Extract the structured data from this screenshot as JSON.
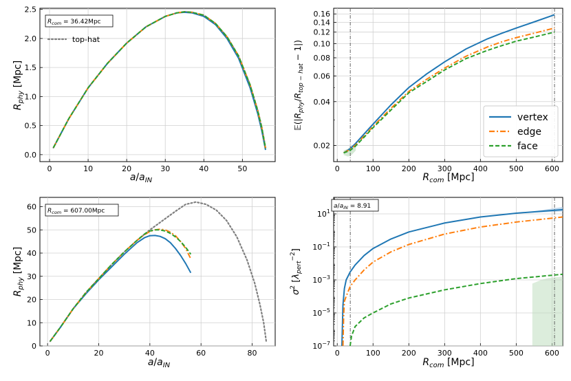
{
  "colors": {
    "vertex": "#1f77b4",
    "edge": "#ff7f0e",
    "face": "#2ca02c",
    "tophat": "#7f7f7f",
    "band_blue": "#a6c8e4",
    "band_green": "#b9dbb9",
    "vline": "#555555",
    "grid": "#d0d0d0"
  },
  "legend_labels": {
    "vertex": "vertex",
    "edge": "edge",
    "face": "face"
  },
  "chart_data": [
    {
      "id": "tl",
      "type": "line",
      "xlabel": "a/a_IN",
      "ylabel": "R_phy [Mpc]",
      "xlim": [
        -2.5,
        58.5
      ],
      "ylim": [
        -0.12,
        2.52
      ],
      "xticks": [
        0,
        10,
        20,
        30,
        40,
        50
      ],
      "yticks": [
        0.0,
        0.5,
        1.0,
        1.5,
        2.0,
        2.5
      ],
      "ytick_labels": [
        "0.0",
        "0.5",
        "1.0",
        "1.5",
        "2.0",
        "2.5"
      ],
      "annotation": "R_com = 36.42Mpc",
      "legend": [
        "top-hat"
      ],
      "legend_position": "upper-left",
      "series": [
        {
          "key": "tophat",
          "style": "dotted",
          "x": [
            1,
            5,
            10,
            15,
            20,
            25,
            30,
            33,
            35,
            37,
            40,
            43,
            46,
            49,
            52,
            54,
            55,
            56
          ],
          "y": [
            0.12,
            0.62,
            1.15,
            1.57,
            1.92,
            2.2,
            2.38,
            2.44,
            2.46,
            2.45,
            2.4,
            2.26,
            2.03,
            1.7,
            1.2,
            0.76,
            0.48,
            0.12
          ]
        },
        {
          "key": "vertex",
          "style": "solid",
          "x": [
            1,
            5,
            10,
            15,
            20,
            25,
            30,
            33,
            35,
            37,
            40,
            43,
            46,
            49,
            52,
            54,
            55,
            56
          ],
          "y": [
            0.12,
            0.62,
            1.15,
            1.57,
            1.92,
            2.2,
            2.38,
            2.44,
            2.45,
            2.44,
            2.38,
            2.24,
            2.0,
            1.66,
            1.15,
            0.7,
            0.42,
            0.08
          ]
        },
        {
          "key": "edge",
          "style": "dashdot",
          "x": [
            1,
            5,
            10,
            15,
            20,
            25,
            30,
            33,
            35,
            37,
            40,
            43,
            46,
            49,
            52,
            54,
            55,
            56
          ],
          "y": [
            0.12,
            0.62,
            1.15,
            1.57,
            1.92,
            2.2,
            2.38,
            2.44,
            2.46,
            2.45,
            2.4,
            2.26,
            2.03,
            1.7,
            1.2,
            0.75,
            0.47,
            0.11
          ]
        },
        {
          "key": "face",
          "style": "dashed",
          "x": [
            1,
            5,
            10,
            15,
            20,
            25,
            30,
            33,
            35,
            37,
            40,
            43,
            46,
            49,
            52,
            54,
            55,
            56
          ],
          "y": [
            0.12,
            0.62,
            1.15,
            1.57,
            1.92,
            2.2,
            2.38,
            2.44,
            2.46,
            2.45,
            2.4,
            2.26,
            2.03,
            1.7,
            1.2,
            0.75,
            0.47,
            0.11
          ]
        }
      ]
    },
    {
      "id": "tr",
      "type": "line",
      "xlabel": "R_com [Mpc]",
      "ylabel": "E(|R_phy/R_top-hat - 1|)",
      "xlim": [
        -10,
        630
      ],
      "ylim": [
        0.0155,
        0.175
      ],
      "yscale": "log",
      "xticks": [
        0,
        100,
        200,
        300,
        400,
        500,
        600
      ],
      "yticks": [
        0.02,
        0.04,
        0.06,
        0.08,
        0.1,
        0.12,
        0.14,
        0.16
      ],
      "ytick_labels": [
        "0.02",
        "0.04",
        "0.06",
        "0.08",
        "0.10",
        "0.12",
        "0.14",
        "0.16"
      ],
      "vlines": [
        36.42,
        607.0
      ],
      "legend": [
        "vertex",
        "edge",
        "face"
      ],
      "legend_position": "lower-right",
      "series": [
        {
          "key": "vertex",
          "style": "solid",
          "x": [
            18,
            36,
            50,
            75,
            100,
            150,
            200,
            250,
            300,
            360,
            420,
            460,
            500,
            550,
            607
          ],
          "y": [
            0.0178,
            0.019,
            0.0205,
            0.024,
            0.028,
            0.038,
            0.05,
            0.062,
            0.075,
            0.092,
            0.108,
            0.118,
            0.128,
            0.141,
            0.158
          ]
        },
        {
          "key": "edge",
          "style": "dashdot",
          "x": [
            18,
            36,
            50,
            75,
            100,
            150,
            200,
            250,
            300,
            360,
            420,
            460,
            500,
            550,
            607
          ],
          "y": [
            0.0178,
            0.0188,
            0.02,
            0.0232,
            0.027,
            0.036,
            0.047,
            0.057,
            0.068,
            0.082,
            0.095,
            0.103,
            0.11,
            0.118,
            0.128
          ]
        },
        {
          "key": "face",
          "style": "dashed",
          "x": [
            18,
            36,
            50,
            75,
            100,
            150,
            200,
            250,
            300,
            360,
            420,
            460,
            500,
            550,
            607
          ],
          "y": [
            0.0178,
            0.0185,
            0.0197,
            0.0228,
            0.0265,
            0.035,
            0.046,
            0.055,
            0.066,
            0.079,
            0.09,
            0.097,
            0.104,
            0.111,
            0.12
          ]
        }
      ]
    },
    {
      "id": "bl",
      "type": "line",
      "xlabel": "a/a_IN",
      "ylabel": "R_phy [Mpc]",
      "xlim": [
        -3,
        89
      ],
      "ylim": [
        0,
        64
      ],
      "xticks": [
        0,
        20,
        40,
        60,
        80
      ],
      "yticks": [
        0,
        10,
        20,
        30,
        40,
        50,
        60
      ],
      "ytick_labels": [
        "0",
        "10",
        "20",
        "30",
        "40",
        "50",
        "60"
      ],
      "annotation": "R_com = 607.00Mpc",
      "series": [
        {
          "key": "tophat",
          "style": "dotted",
          "x": [
            1,
            5,
            10,
            15,
            20,
            25,
            30,
            35,
            40,
            45,
            50,
            54,
            58,
            62,
            66,
            70,
            74,
            78,
            81,
            83,
            84.5,
            85.5
          ],
          "y": [
            2,
            8,
            16,
            23,
            29,
            35,
            40.5,
            45.5,
            50,
            54,
            58,
            61,
            62,
            61,
            58.5,
            54,
            47,
            37,
            27,
            18,
            10,
            2
          ]
        },
        {
          "key": "vertex",
          "style": "solid",
          "x": [
            1,
            5,
            10,
            15,
            20,
            25,
            30,
            35,
            38,
            40,
            42,
            44,
            46,
            48,
            50,
            52,
            54,
            56
          ],
          "y": [
            2,
            8,
            16,
            22.5,
            28.5,
            34,
            39.5,
            44.5,
            46.7,
            47.5,
            47.6,
            47.2,
            46.2,
            44.5,
            42,
            39,
            35.5,
            31.5
          ]
        },
        {
          "key": "edge",
          "style": "dashdot",
          "x": [
            1,
            5,
            10,
            15,
            20,
            25,
            30,
            35,
            38,
            40,
            42,
            44,
            46,
            48,
            50,
            52,
            54,
            56
          ],
          "y": [
            2,
            8,
            16,
            23,
            29,
            35,
            40.5,
            45.5,
            48,
            49.3,
            50,
            50.3,
            50,
            49,
            47.5,
            45,
            42,
            37.5
          ]
        },
        {
          "key": "face",
          "style": "dashed",
          "x": [
            1,
            5,
            10,
            15,
            20,
            25,
            30,
            35,
            38,
            40,
            42,
            44,
            46,
            48,
            50,
            52,
            54,
            56
          ],
          "y": [
            2,
            8,
            16,
            23,
            29,
            35,
            40.5,
            45.5,
            48.3,
            49.5,
            50,
            50,
            49.5,
            48.5,
            47,
            45,
            42.5,
            39.5
          ]
        }
      ]
    },
    {
      "id": "br",
      "type": "line",
      "xlabel": "R_com [Mpc]",
      "ylabel": "sigma^2 [lambda_pert^-2]",
      "xlim": [
        -10,
        630
      ],
      "ylim": [
        1e-07,
        100
      ],
      "yscale": "log",
      "xticks": [
        0,
        100,
        200,
        300,
        400,
        500,
        600
      ],
      "yticks": [
        1e-07,
        1e-05,
        0.001,
        0.1,
        10
      ],
      "ytick_labels": [
        "10^-7",
        "10^-5",
        "10^-3",
        "10^-1",
        "10^1"
      ],
      "vlines": [
        36.42,
        607.0
      ],
      "annotation": "a/a_IN = 8.91",
      "series": [
        {
          "key": "vertex",
          "style": "solid",
          "x": [
            13,
            16,
            20,
            25,
            36,
            50,
            75,
            100,
            150,
            200,
            300,
            400,
            500,
            630
          ],
          "y": [
            1e-07,
            3e-05,
            0.0003,
            0.001,
            0.003,
            0.008,
            0.03,
            0.08,
            0.3,
            0.8,
            2.8,
            6.5,
            11,
            18
          ]
        },
        {
          "key": "edge",
          "style": "dashdot",
          "x": [
            16,
            18,
            20,
            25,
            36,
            50,
            75,
            100,
            150,
            200,
            300,
            400,
            500,
            630
          ],
          "y": [
            1e-07,
            8e-06,
            5e-05,
            0.0001,
            0.0004,
            0.001,
            0.004,
            0.012,
            0.05,
            0.14,
            0.6,
            1.6,
            3.2,
            6.5
          ]
        },
        {
          "key": "face",
          "style": "dashed",
          "x": [
            36,
            40,
            50,
            75,
            100,
            150,
            200,
            300,
            400,
            500,
            630
          ],
          "y": [
            1e-07,
            4e-07,
            1.5e-06,
            5e-06,
            1e-05,
            3.5e-05,
            8e-05,
            0.00025,
            0.0006,
            0.0012,
            0.0022
          ]
        }
      ]
    }
  ]
}
